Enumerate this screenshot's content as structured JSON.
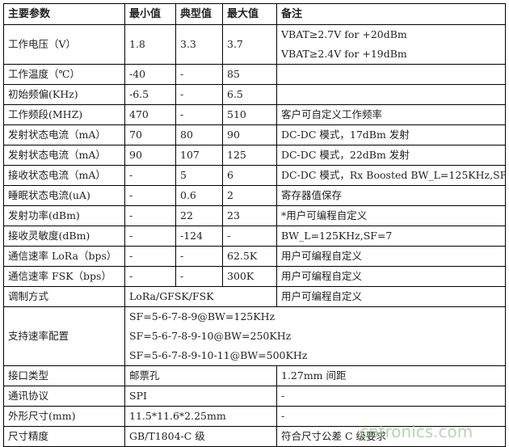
{
  "table": {
    "headers": [
      "主要参数",
      "最小值",
      "典型值",
      "最大值",
      "备注"
    ],
    "rows": [
      {
        "param": "工作电压（V）",
        "min": "1.8",
        "typ": "3.3",
        "max": "3.7",
        "note": [
          "VBAT≥2.7V for +20dBm",
          "VBAT≥2.4V for +19dBm"
        ]
      },
      {
        "param": "工作温度（℃）",
        "min": "-40",
        "typ": "-",
        "max": "85",
        "note": [
          ""
        ]
      },
      {
        "param": "初始频偏(KHz)",
        "min": "-6.5",
        "typ": "-",
        "max": "6.5",
        "note": [
          ""
        ]
      },
      {
        "param": "工作频段(MHZ)",
        "min": "470",
        "typ": "-",
        "max": "510",
        "note": [
          "客户可自定义工作频率"
        ]
      },
      {
        "param": "发射状态电流（mA）",
        "min": "70",
        "typ": "80",
        "max": "90",
        "note": [
          "DC-DC 模式，17dBm 发射"
        ]
      },
      {
        "param": "发射状态电流（mA）",
        "min": "90",
        "typ": "107",
        "max": "125",
        "note": [
          "DC-DC 模式，22dBm 发射"
        ]
      },
      {
        "param": "接收状态电流（mA）",
        "min": "-",
        "typ": "5",
        "max": "6",
        "note": [
          "DC-DC 模式，Rx Boosted BW_L=125KHz,SF"
        ]
      },
      {
        "param": "睡眠状态电流(uA)",
        "min": "-",
        "typ": "0.6",
        "max": "2",
        "note": [
          "寄存器值保存"
        ]
      },
      {
        "param": "发射功率(dBm)",
        "min": "-",
        "typ": "22",
        "max": "23",
        "note": [
          "*用户可编程自定义"
        ]
      },
      {
        "param": "接收灵敏度(dBm)",
        "min": "-",
        "typ": "-124",
        "max": "-",
        "note": [
          "BW_L=125KHz,SF=7"
        ]
      },
      {
        "param": "通信速率 LoRa（bps）",
        "min": "-",
        "typ": "-",
        "max": "62.5K",
        "note": [
          "用户可编程自定义"
        ]
      },
      {
        "param": "通信速率 FSK（bps）",
        "min": "-",
        "typ": "-",
        "max": "300K",
        "note": [
          "用户可编程自定义"
        ]
      }
    ],
    "merged_rows": [
      {
        "param": "调制方式",
        "value": [
          "LoRa/GFSK/FSK"
        ],
        "note": "用户可编程自定义"
      },
      {
        "param": "支持速率配置",
        "value": [
          "SF=5-6-7-8-9@BW=125KHz",
          "SF=5-6-7-8-9-10@BW=250KHz",
          "SF=5-6-7-8-9-10-11@BW=500KHz"
        ]
      },
      {
        "param": "接口类型",
        "value": [
          "邮票孔"
        ],
        "note": "1.27mm 间距"
      },
      {
        "param": "通讯协议",
        "value": [
          "SPI"
        ],
        "note": "-"
      },
      {
        "param": "外形尺寸(mm)",
        "value": [
          "11.5*11.6*2.25mm"
        ],
        "note": "-"
      },
      {
        "param": "尺寸精度",
        "value": [
          "GB/T1804-C 级"
        ],
        "note": "符合尺寸公差 C 级要求"
      }
    ]
  },
  "watermark": "cntronics.com"
}
